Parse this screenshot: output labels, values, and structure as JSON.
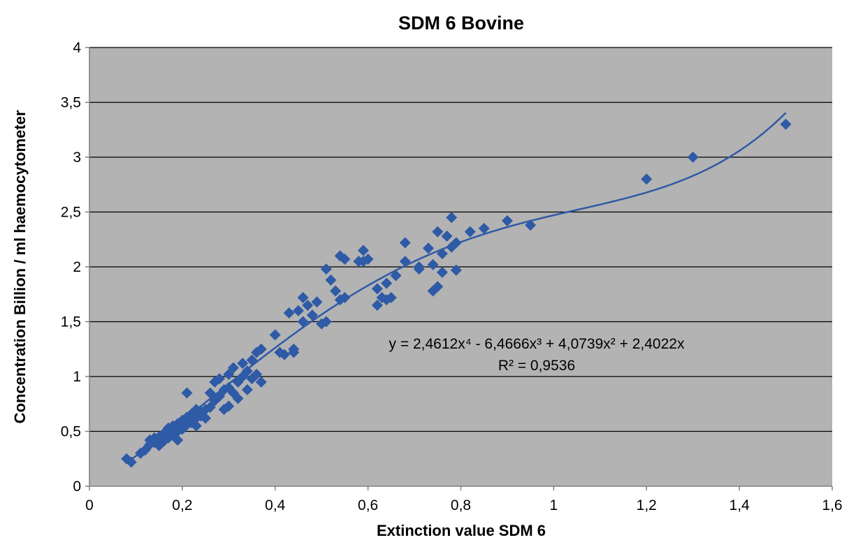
{
  "chart_data": {
    "type": "scatter",
    "title": "SDM 6 Bovine",
    "xlabel": "Extinction value SDM 6",
    "ylabel": "Concentration Billion / ml haemocytometer",
    "xlim": [
      0,
      1.6
    ],
    "ylim": [
      0,
      4
    ],
    "x_ticks": [
      "0",
      "0,2",
      "0,4",
      "0,6",
      "0,8",
      "1",
      "1,2",
      "1,4",
      "1,6"
    ],
    "y_ticks": [
      "0",
      "0,5",
      "1",
      "1,5",
      "2",
      "2,5",
      "3",
      "3,5",
      "4"
    ],
    "grid": "horizontal",
    "background_color": "#b3b3b3",
    "marker_color": "#2e5aa6",
    "trendline_color": "#2e5aa6",
    "trendline": {
      "type": "polynomial",
      "coefficients": [
        2.4612,
        -6.4666,
        4.0739,
        2.4022,
        0
      ],
      "x_range": [
        0.08,
        1.5
      ],
      "equation": "y = 2,4612x⁴ - 6,4666x³ + 4,0739x² + 2,4022x",
      "r_squared": "R² = 0,9536"
    },
    "series": [
      {
        "points": [
          [
            0.08,
            0.25
          ],
          [
            0.09,
            0.22
          ],
          [
            0.11,
            0.3
          ],
          [
            0.12,
            0.33
          ],
          [
            0.13,
            0.38
          ],
          [
            0.13,
            0.42
          ],
          [
            0.14,
            0.44
          ],
          [
            0.14,
            0.4
          ],
          [
            0.15,
            0.37
          ],
          [
            0.15,
            0.45
          ],
          [
            0.16,
            0.41
          ],
          [
            0.16,
            0.48
          ],
          [
            0.17,
            0.5
          ],
          [
            0.17,
            0.44
          ],
          [
            0.17,
            0.53
          ],
          [
            0.18,
            0.46
          ],
          [
            0.18,
            0.55
          ],
          [
            0.19,
            0.42
          ],
          [
            0.19,
            0.5
          ],
          [
            0.19,
            0.57
          ],
          [
            0.2,
            0.6
          ],
          [
            0.2,
            0.52
          ],
          [
            0.21,
            0.56
          ],
          [
            0.21,
            0.63
          ],
          [
            0.21,
            0.85
          ],
          [
            0.22,
            0.58
          ],
          [
            0.22,
            0.66
          ],
          [
            0.22,
            0.6
          ],
          [
            0.23,
            0.62
          ],
          [
            0.23,
            0.7
          ],
          [
            0.23,
            0.55
          ],
          [
            0.24,
            0.64
          ],
          [
            0.24,
            0.68
          ],
          [
            0.25,
            0.7
          ],
          [
            0.25,
            0.62
          ],
          [
            0.26,
            0.72
          ],
          [
            0.26,
            0.85
          ],
          [
            0.27,
            0.78
          ],
          [
            0.27,
            0.95
          ],
          [
            0.28,
            0.82
          ],
          [
            0.28,
            0.98
          ],
          [
            0.29,
            0.7
          ],
          [
            0.29,
            0.88
          ],
          [
            0.3,
            0.73
          ],
          [
            0.3,
            0.9
          ],
          [
            0.3,
            1.02
          ],
          [
            0.31,
            0.85
          ],
          [
            0.31,
            1.08
          ],
          [
            0.32,
            0.8
          ],
          [
            0.32,
            0.95
          ],
          [
            0.33,
            1.0
          ],
          [
            0.33,
            1.12
          ],
          [
            0.34,
            0.88
          ],
          [
            0.34,
            1.05
          ],
          [
            0.35,
            1.15
          ],
          [
            0.35,
            0.98
          ],
          [
            0.36,
            1.02
          ],
          [
            0.36,
            1.22
          ],
          [
            0.37,
            1.25
          ],
          [
            0.37,
            0.95
          ],
          [
            0.4,
            1.38
          ],
          [
            0.41,
            1.22
          ],
          [
            0.42,
            1.2
          ],
          [
            0.43,
            1.58
          ],
          [
            0.44,
            1.22
          ],
          [
            0.44,
            1.25
          ],
          [
            0.45,
            1.6
          ],
          [
            0.46,
            1.5
          ],
          [
            0.46,
            1.72
          ],
          [
            0.47,
            1.65
          ],
          [
            0.48,
            1.56
          ],
          [
            0.49,
            1.68
          ],
          [
            0.5,
            1.48
          ],
          [
            0.51,
            1.5
          ],
          [
            0.51,
            1.98
          ],
          [
            0.52,
            1.88
          ],
          [
            0.53,
            1.78
          ],
          [
            0.54,
            2.1
          ],
          [
            0.54,
            1.7
          ],
          [
            0.55,
            2.07
          ],
          [
            0.55,
            1.72
          ],
          [
            0.58,
            2.05
          ],
          [
            0.59,
            2.15
          ],
          [
            0.59,
            2.05
          ],
          [
            0.6,
            2.07
          ],
          [
            0.62,
            1.65
          ],
          [
            0.62,
            1.8
          ],
          [
            0.63,
            1.72
          ],
          [
            0.64,
            1.85
          ],
          [
            0.64,
            1.7
          ],
          [
            0.65,
            1.72
          ],
          [
            0.66,
            1.92
          ],
          [
            0.68,
            2.22
          ],
          [
            0.68,
            2.05
          ],
          [
            0.71,
            2.0
          ],
          [
            0.71,
            1.98
          ],
          [
            0.73,
            2.17
          ],
          [
            0.74,
            2.02
          ],
          [
            0.74,
            1.78
          ],
          [
            0.75,
            2.32
          ],
          [
            0.75,
            1.82
          ],
          [
            0.76,
            1.95
          ],
          [
            0.76,
            2.12
          ],
          [
            0.77,
            2.28
          ],
          [
            0.78,
            2.18
          ],
          [
            0.78,
            2.45
          ],
          [
            0.79,
            2.22
          ],
          [
            0.79,
            1.97
          ],
          [
            0.82,
            2.32
          ],
          [
            0.85,
            2.35
          ],
          [
            0.9,
            2.42
          ],
          [
            0.95,
            2.38
          ],
          [
            1.2,
            2.8
          ],
          [
            1.3,
            3.0
          ],
          [
            1.5,
            3.3
          ]
        ]
      }
    ]
  }
}
